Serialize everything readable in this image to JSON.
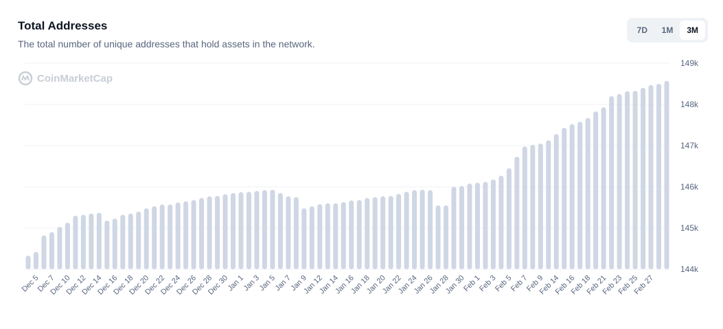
{
  "header": {
    "title": "Total Addresses",
    "subtitle": "The total number of unique addresses that hold assets in the network."
  },
  "range_buttons": [
    {
      "label": "7D",
      "active": false
    },
    {
      "label": "1M",
      "active": false
    },
    {
      "label": "3M",
      "active": true
    }
  ],
  "watermark": "CoinMarketCap",
  "colors": {
    "bar": "#cfd6e4",
    "grid": "#eff2f5",
    "text": "#58667e"
  },
  "chart_data": {
    "type": "bar",
    "title": "Total Addresses",
    "yaxis_position": "right",
    "ylim": [
      144,
      149
    ],
    "yticks": [
      "144k",
      "145k",
      "146k",
      "147k",
      "148k",
      "149k"
    ],
    "grid": true,
    "xtick_labels": [
      "Dec 5",
      "Dec 7",
      "Dec 10",
      "Dec 12",
      "Dec 14",
      "Dec 16",
      "Dec 18",
      "Dec 20",
      "Dec 22",
      "Dec 24",
      "Dec 26",
      "Dec 28",
      "Dec 30",
      "Jan 1",
      "Jan 3",
      "Jan 5",
      "Jan 7",
      "Jan 9",
      "Jan 12",
      "Jan 14",
      "Jan 16",
      "Jan 18",
      "Jan 20",
      "Jan 22",
      "Jan 24",
      "Jan 26",
      "Jan 28",
      "Jan 30",
      "Feb 1",
      "Feb 3",
      "Feb 5",
      "Feb 7",
      "Feb 9",
      "Feb 14",
      "Feb 16",
      "Feb 18",
      "Feb 21",
      "Feb 23",
      "Feb 25",
      "Feb 27"
    ],
    "values_k": [
      144.33,
      144.42,
      144.82,
      144.9,
      145.03,
      145.13,
      145.3,
      145.32,
      145.35,
      145.37,
      145.18,
      145.23,
      145.32,
      145.35,
      145.4,
      145.48,
      145.53,
      145.57,
      145.57,
      145.62,
      145.65,
      145.68,
      145.73,
      145.77,
      145.78,
      145.82,
      145.85,
      145.87,
      145.88,
      145.9,
      145.92,
      145.93,
      145.85,
      145.77,
      145.75,
      145.48,
      145.53,
      145.58,
      145.6,
      145.6,
      145.63,
      145.67,
      145.68,
      145.73,
      145.75,
      145.77,
      145.78,
      145.83,
      145.88,
      145.92,
      145.93,
      145.92,
      145.55,
      145.55,
      146.0,
      146.02,
      146.08,
      146.1,
      146.12,
      146.18,
      146.27,
      146.45,
      146.73,
      146.98,
      147.02,
      147.05,
      147.13,
      147.28,
      147.43,
      147.52,
      147.58,
      147.67,
      147.83,
      147.93,
      148.2,
      148.25,
      148.32,
      148.33,
      148.4,
      148.47,
      148.5,
      148.57
    ]
  }
}
